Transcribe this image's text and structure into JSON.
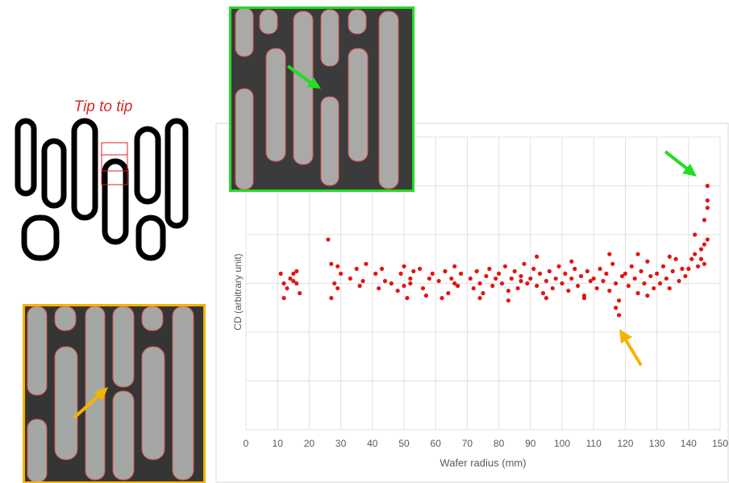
{
  "annotation": "Tip to tip",
  "chart_data": {
    "type": "scatter",
    "xlabel": "Wafer radius (mm)",
    "ylabel": "CD (arbitrary unit)",
    "color": "#e31414",
    "grid": true,
    "xlim": [
      0,
      150
    ],
    "xticks": [
      0,
      10,
      20,
      30,
      40,
      50,
      60,
      70,
      80,
      90,
      100,
      110,
      120,
      130,
      140,
      150
    ],
    "ylim": [
      0,
      6
    ],
    "yticks": [
      0,
      1,
      2,
      3,
      4,
      5,
      6
    ],
    "x": [
      11,
      12,
      13,
      14,
      15,
      16,
      17,
      12,
      15,
      16,
      26,
      27,
      28,
      29,
      30,
      27,
      29,
      33,
      35,
      36,
      38,
      37,
      41,
      42,
      43,
      44,
      46,
      48,
      49,
      50,
      51,
      52,
      53,
      50,
      52,
      55,
      56,
      58,
      59,
      57,
      61,
      63,
      64,
      65,
      66,
      67,
      68,
      62,
      66,
      71,
      72,
      73,
      74,
      75,
      76,
      77,
      78,
      79,
      74,
      80,
      81,
      82,
      83,
      84,
      85,
      86,
      87,
      88,
      89,
      83,
      87,
      90,
      91,
      92,
      93,
      94,
      95,
      96,
      97,
      98,
      99,
      92,
      95,
      100,
      101,
      102,
      103,
      104,
      105,
      106,
      107,
      108,
      109,
      103,
      107,
      110,
      111,
      112,
      113,
      114,
      115,
      116,
      117,
      118,
      119,
      115,
      118,
      117,
      120,
      121,
      122,
      123,
      124,
      125,
      126,
      127,
      128,
      129,
      124,
      127,
      130,
      131,
      132,
      133,
      134,
      135,
      136,
      137,
      138,
      139,
      134,
      140,
      141,
      142,
      143,
      144,
      145,
      146,
      142,
      144,
      145,
      146,
      146,
      145,
      146
    ],
    "values": [
      3.2,
      3.0,
      2.9,
      3.1,
      3.2,
      3.0,
      2.8,
      2.7,
      3.05,
      3.25,
      3.9,
      3.4,
      3.0,
      2.9,
      3.2,
      2.7,
      3.35,
      3.1,
      3.3,
      2.95,
      3.4,
      3.05,
      3.2,
      2.9,
      3.3,
      3.05,
      3.0,
      2.85,
      3.2,
      3.35,
      2.7,
      3.1,
      3.25,
      2.95,
      3.0,
      3.3,
      2.9,
      3.1,
      3.2,
      2.75,
      3.05,
      3.25,
      2.8,
      3.1,
      3.35,
      2.95,
      3.2,
      2.7,
      3.0,
      3.1,
      2.9,
      3.25,
      3.0,
      2.8,
      3.15,
      3.3,
      2.95,
      3.1,
      2.7,
      3.2,
      3.0,
      3.35,
      2.85,
      3.1,
      3.25,
      2.9,
      3.05,
      3.4,
      3.0,
      2.65,
      3.15,
      3.1,
      3.3,
      2.95,
      3.2,
      2.8,
      3.05,
      3.25,
      2.9,
      3.1,
      3.35,
      3.55,
      2.7,
      3.0,
      3.2,
      2.85,
      3.1,
      3.3,
      2.95,
      3.15,
      2.75,
      3.25,
      3.05,
      3.45,
      2.7,
      3.1,
      2.9,
      3.3,
      3.05,
      3.2,
      2.85,
      3.4,
      3.0,
      2.65,
      3.15,
      3.6,
      2.35,
      2.5,
      3.2,
      2.95,
      3.35,
      3.1,
      2.8,
      3.25,
      3.0,
      3.45,
      3.15,
      2.9,
      3.6,
      2.75,
      3.2,
      3.0,
      3.35,
      3.1,
      2.9,
      3.25,
      3.5,
      3.05,
      3.3,
      3.15,
      3.55,
      3.3,
      3.5,
      3.6,
      3.35,
      3.7,
      3.4,
      3.9,
      4.0,
      3.5,
      4.3,
      4.55,
      5.0,
      3.8,
      4.7
    ]
  }
}
